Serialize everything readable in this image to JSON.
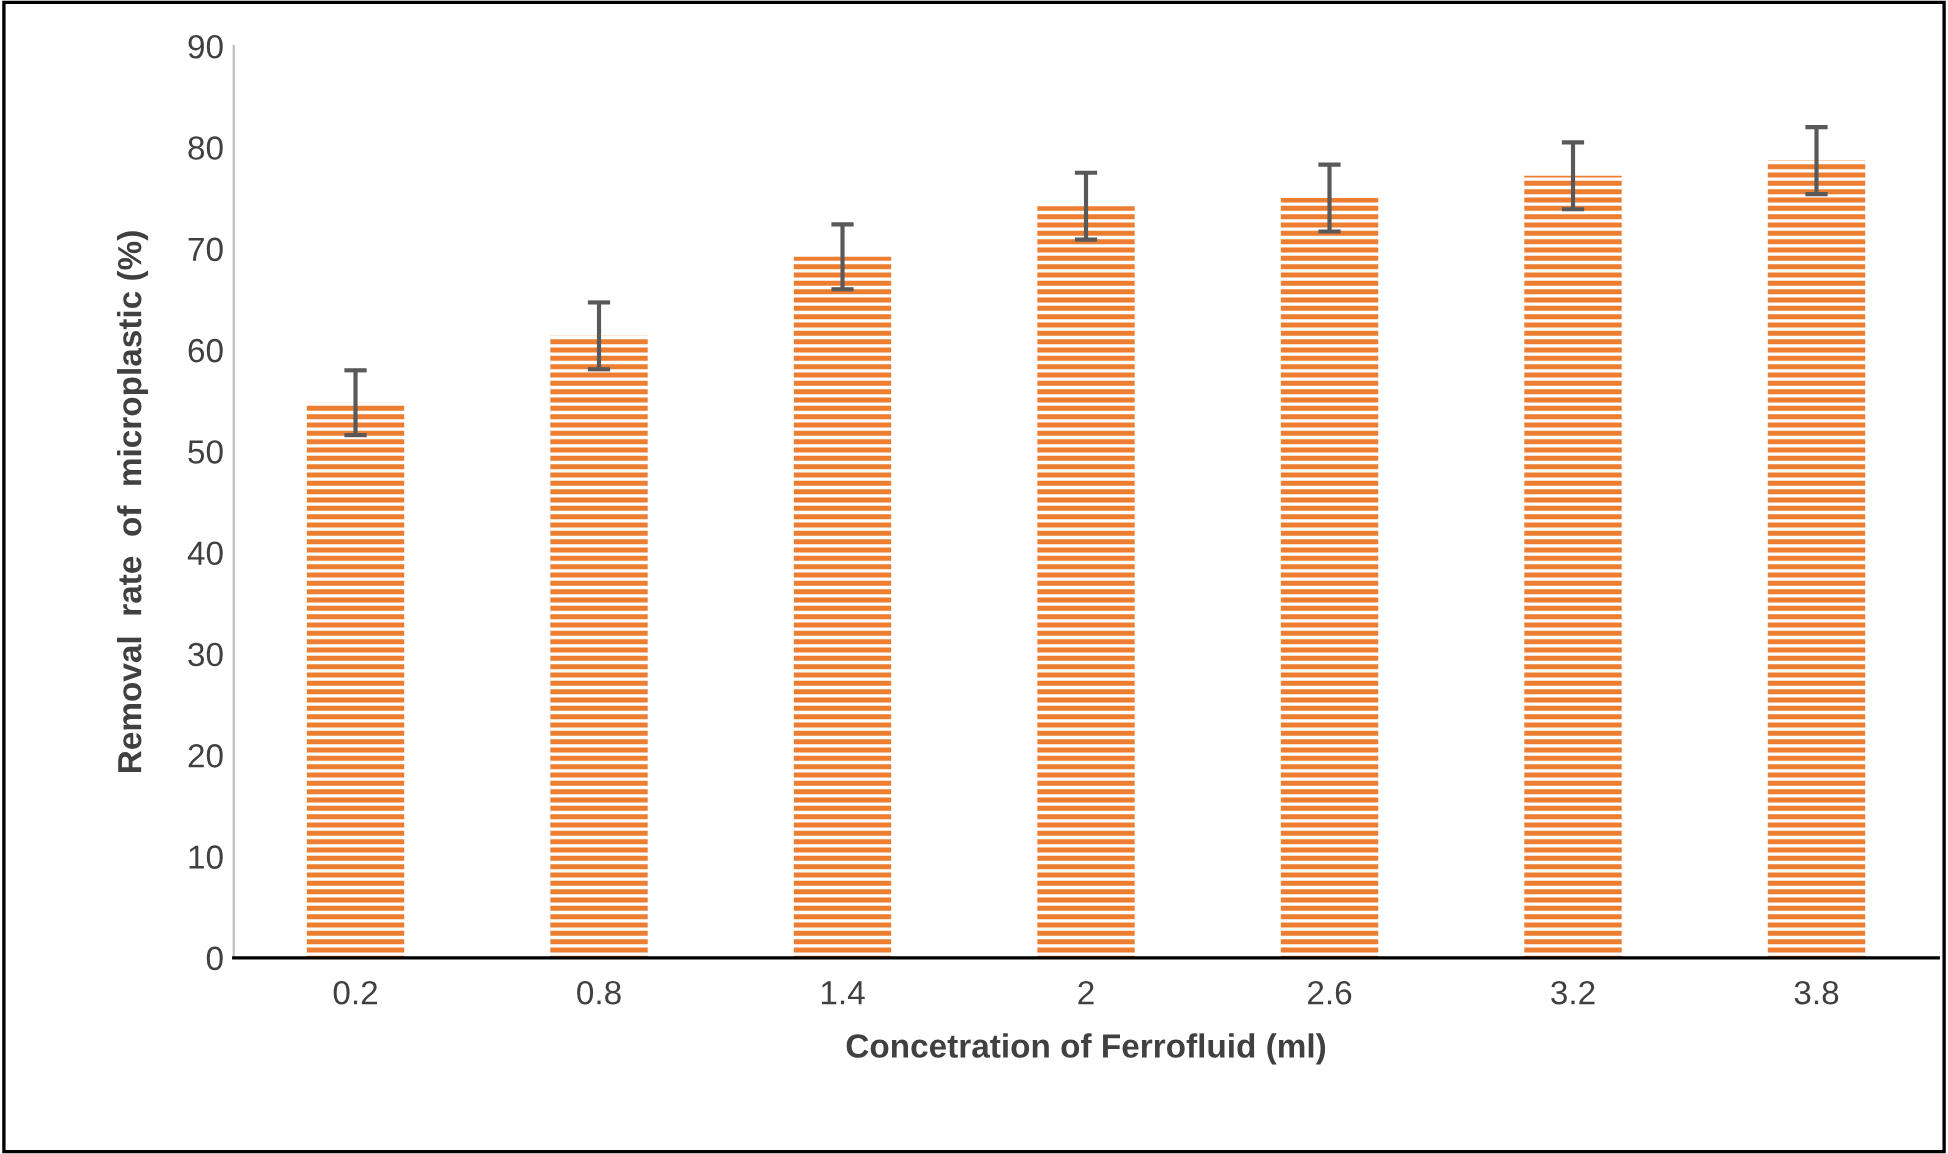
{
  "chart_data": {
    "type": "bar",
    "xlabel": "Concetration of Ferrofluid (ml)",
    "ylabel": "Removal  rate  of  microplastic (%)",
    "categories": [
      "0.2",
      "0.8",
      "1.4",
      "2",
      "2.6",
      "3.2",
      "3.8"
    ],
    "values": [
      54.8,
      61.4,
      69.2,
      74.2,
      75.0,
      77.2,
      78.7
    ],
    "errors": [
      3.2,
      3.3,
      3.2,
      3.3,
      3.3,
      3.3,
      3.3
    ],
    "color": "#ed7d31",
    "ylim": [
      0,
      90
    ],
    "yticks": [
      0,
      10,
      20,
      30,
      40,
      50,
      60,
      70,
      80,
      90
    ],
    "grid": false
  }
}
